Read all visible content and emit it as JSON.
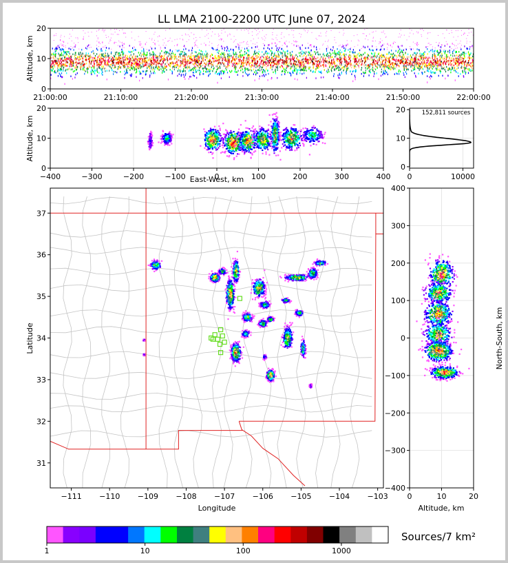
{
  "chart_data": {
    "type": "scatter",
    "title": "LL LMA 2100-2200 UTC June 07, 2024",
    "time_height": {
      "ylabel": "Altitude, km",
      "ylim": [
        0,
        20
      ],
      "yticks": [
        "0",
        "10",
        "20"
      ],
      "xticks": [
        "21:00:00",
        "21:10:00",
        "21:20:00",
        "21:30:00",
        "21:40:00",
        "21:50:00",
        "22:00:00"
      ],
      "band_center_km": 9,
      "band_spread_km": 4
    },
    "ew_height": {
      "xlabel": "East-West, km",
      "ylabel": "Altitude, km",
      "xlim": [
        -400,
        400
      ],
      "ylim": [
        0,
        20
      ],
      "xticks": [
        "−400",
        "−300",
        "−200",
        "−100",
        "0",
        "100",
        "200",
        "300",
        "400"
      ],
      "yticks": [
        "0",
        "10",
        "20"
      ],
      "clusters": [
        {
          "x": -160,
          "y": 9,
          "w": 5,
          "h": 3,
          "d": 0.2
        },
        {
          "x": -120,
          "y": 10,
          "w": 12,
          "h": 2,
          "d": 0.5
        },
        {
          "x": -10,
          "y": 9.5,
          "w": 22,
          "h": 4,
          "d": 0.9
        },
        {
          "x": 40,
          "y": 8.5,
          "w": 25,
          "h": 4,
          "d": 1.0
        },
        {
          "x": 75,
          "y": 9,
          "w": 22,
          "h": 4,
          "d": 0.9
        },
        {
          "x": 110,
          "y": 9.5,
          "w": 22,
          "h": 4,
          "d": 0.8
        },
        {
          "x": 140,
          "y": 11,
          "w": 10,
          "h": 6,
          "d": 0.8
        },
        {
          "x": 180,
          "y": 10,
          "w": 25,
          "h": 4,
          "d": 0.8
        },
        {
          "x": 230,
          "y": 11,
          "w": 25,
          "h": 3,
          "d": 0.5
        }
      ]
    },
    "histogram": {
      "label": "152,811 sources",
      "xlim": [
        0,
        12000
      ],
      "xticks": [
        "0",
        "10000"
      ],
      "ylim": [
        0,
        20
      ],
      "yticks": [
        "0",
        "10",
        "20"
      ],
      "peak_alt_km": 8.5,
      "peak_count": 11500
    },
    "map": {
      "xlabel": "Longitude",
      "ylabel": "Latitude",
      "xlim": [
        -111.55,
        -102.85
      ],
      "ylim": [
        30.4,
        37.6
      ],
      "xticks": [
        "−111",
        "−110",
        "−109",
        "−108",
        "−107",
        "−106",
        "−105",
        "−104",
        "−103"
      ],
      "xtick_values": [
        -111,
        -110,
        -109,
        -108,
        -107,
        -106,
        -105,
        -104,
        -103
      ],
      "yticks": [
        "31",
        "32",
        "33",
        "34",
        "35",
        "36",
        "37"
      ],
      "ytick_values": [
        31,
        32,
        33,
        34,
        35,
        36,
        37
      ],
      "state_border_color": "#e02020",
      "county_line_color": "#c0c0c0",
      "station_color": "#66dd22",
      "stations": [
        {
          "lon": -107.35,
          "lat": 34.0
        },
        {
          "lon": -107.25,
          "lat": 34.08
        },
        {
          "lon": -107.18,
          "lat": 33.97
        },
        {
          "lon": -107.1,
          "lat": 34.2
        },
        {
          "lon": -107.05,
          "lat": 34.05
        },
        {
          "lon": -107.12,
          "lat": 33.85
        },
        {
          "lon": -107.0,
          "lat": 33.9
        },
        {
          "lon": -107.1,
          "lat": 33.65
        },
        {
          "lon": -106.6,
          "lat": 34.95
        },
        {
          "lon": -107.3,
          "lat": 33.97
        }
      ],
      "clusters": [
        {
          "lon": -108.8,
          "lat": 35.75,
          "a": 0.13,
          "b": 0.1,
          "d": 0.7
        },
        {
          "lon": -107.25,
          "lat": 35.45,
          "a": 0.12,
          "b": 0.1,
          "d": 0.9
        },
        {
          "lon": -107.05,
          "lat": 35.6,
          "a": 0.1,
          "b": 0.07,
          "d": 0.6
        },
        {
          "lon": -106.7,
          "lat": 35.6,
          "a": 0.08,
          "b": 0.25,
          "d": 0.8
        },
        {
          "lon": -106.85,
          "lat": 35.05,
          "a": 0.1,
          "b": 0.35,
          "d": 0.9
        },
        {
          "lon": -106.7,
          "lat": 33.65,
          "a": 0.12,
          "b": 0.22,
          "d": 1.0
        },
        {
          "lon": -106.4,
          "lat": 34.5,
          "a": 0.12,
          "b": 0.1,
          "d": 0.7
        },
        {
          "lon": -106.45,
          "lat": 34.1,
          "a": 0.1,
          "b": 0.08,
          "d": 0.5
        },
        {
          "lon": -106.1,
          "lat": 35.2,
          "a": 0.15,
          "b": 0.2,
          "d": 0.9
        },
        {
          "lon": -105.95,
          "lat": 34.8,
          "a": 0.12,
          "b": 0.08,
          "d": 0.6
        },
        {
          "lon": -106.0,
          "lat": 34.35,
          "a": 0.1,
          "b": 0.08,
          "d": 0.7
        },
        {
          "lon": -105.8,
          "lat": 34.45,
          "a": 0.08,
          "b": 0.06,
          "d": 0.6
        },
        {
          "lon": -105.8,
          "lat": 33.1,
          "a": 0.1,
          "b": 0.13,
          "d": 1.0
        },
        {
          "lon": -105.95,
          "lat": 33.55,
          "a": 0.05,
          "b": 0.05,
          "d": 0.4
        },
        {
          "lon": -105.4,
          "lat": 34.9,
          "a": 0.1,
          "b": 0.05,
          "d": 0.6
        },
        {
          "lon": -105.35,
          "lat": 34.0,
          "a": 0.12,
          "b": 0.25,
          "d": 0.8
        },
        {
          "lon": -105.1,
          "lat": 35.45,
          "a": 0.3,
          "b": 0.07,
          "d": 0.8
        },
        {
          "lon": -104.7,
          "lat": 35.55,
          "a": 0.12,
          "b": 0.12,
          "d": 0.7
        },
        {
          "lon": -104.5,
          "lat": 35.8,
          "a": 0.15,
          "b": 0.06,
          "d": 0.6
        },
        {
          "lon": -105.05,
          "lat": 34.6,
          "a": 0.1,
          "b": 0.07,
          "d": 0.6
        },
        {
          "lon": -104.95,
          "lat": 33.75,
          "a": 0.06,
          "b": 0.2,
          "d": 0.6
        },
        {
          "lon": -104.75,
          "lat": 32.85,
          "a": 0.03,
          "b": 0.05,
          "d": 0.2
        },
        {
          "lon": -109.1,
          "lat": 33.95,
          "a": 0.02,
          "b": 0.02,
          "d": 0.2
        },
        {
          "lon": -109.1,
          "lat": 33.6,
          "a": 0.02,
          "b": 0.02,
          "d": 0.2
        }
      ]
    },
    "ns_height": {
      "xlabel": "Altitude, km",
      "ylabel": "North-South, km",
      "xlim": [
        0,
        20
      ],
      "ylim": [
        -400,
        400
      ],
      "xticks": [
        "0",
        "10",
        "20"
      ],
      "yticks": [
        "400",
        "300",
        "200",
        "100",
        "0",
        "−100",
        "−200",
        "−300",
        "−400"
      ],
      "clusters": [
        {
          "x": 10,
          "y": 170,
          "w": 3.5,
          "h": 35,
          "d": 0.9
        },
        {
          "x": 9,
          "y": 120,
          "w": 4,
          "h": 25,
          "d": 0.8
        },
        {
          "x": 9,
          "y": 65,
          "w": 4,
          "h": 30,
          "d": 0.9
        },
        {
          "x": 9,
          "y": 10,
          "w": 4,
          "h": 30,
          "d": 0.8
        },
        {
          "x": 9,
          "y": -35,
          "w": 4,
          "h": 25,
          "d": 1.0
        },
        {
          "x": 11,
          "y": -92,
          "w": 4,
          "h": 15,
          "d": 1.0
        }
      ]
    },
    "colorbar": {
      "label": "Sources/7 km²",
      "ticks": [
        "1",
        "10",
        "100",
        "1000"
      ],
      "tick_values": [
        1,
        10,
        100,
        1000
      ],
      "max_value": 3000,
      "colors": [
        "#ff55ff",
        "#8800ff",
        "#7a00ff",
        "#0000ff",
        "#0000ff",
        "#0077ff",
        "#00ffff",
        "#00ff00",
        "#008040",
        "#3f7f7f",
        "#ffff00",
        "#ffc080",
        "#ff8000",
        "#ff0080",
        "#ff0000",
        "#c00000",
        "#800000",
        "#000000",
        "#808080",
        "#c0c0c0",
        "#ffffff"
      ]
    }
  }
}
